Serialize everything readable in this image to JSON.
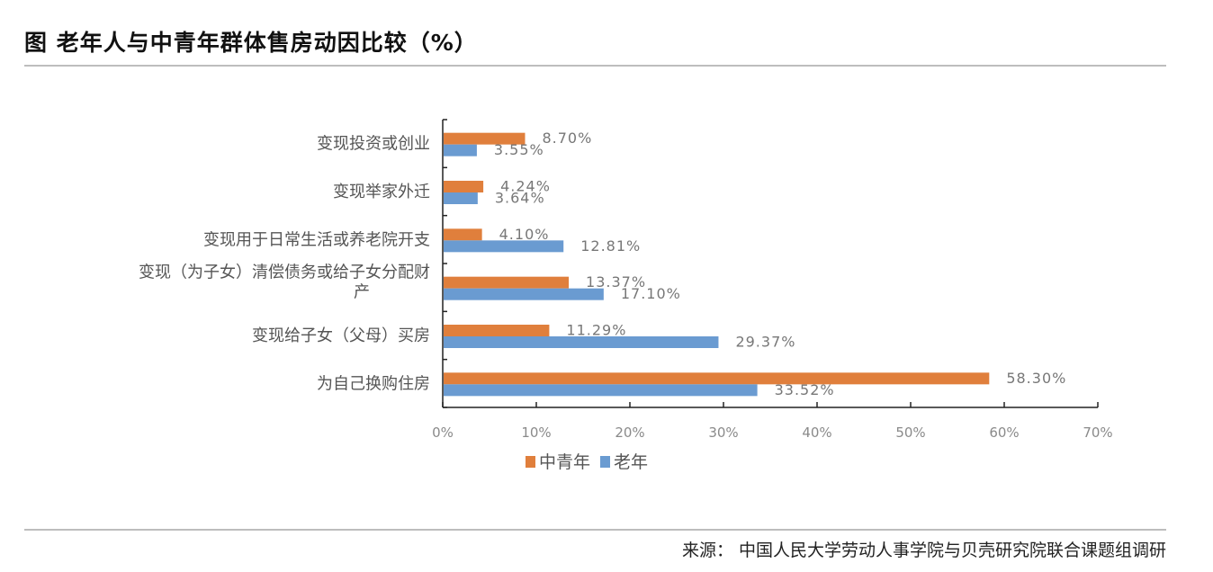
{
  "title": "图  老年人与中青年群体售房动因比较（%）",
  "source": "来源：  中国人民大学劳动人事学院与贝壳研究院联合课题组调研",
  "chart_data": {
    "type": "bar",
    "orientation": "horizontal",
    "categories": [
      [
        "变现投资或创业"
      ],
      [
        "变现举家外迁"
      ],
      [
        "变现用于日常生活或养老院开支"
      ],
      [
        "变现（为子女）清偿债务或给子女分配财",
        "产"
      ],
      [
        "变现给子女（父母）买房"
      ],
      [
        "为自己换购住房"
      ]
    ],
    "series": [
      {
        "name": "中青年",
        "color": "#E07F3C",
        "values": [
          8.7,
          4.24,
          4.1,
          13.37,
          11.29,
          58.3
        ],
        "labels": [
          "8.70%",
          "4.24%",
          "4.10%",
          "13.37%",
          "11.29%",
          "58.30%"
        ]
      },
      {
        "name": "老年",
        "color": "#6A9BD1",
        "values": [
          3.55,
          3.64,
          12.81,
          17.1,
          29.37,
          33.52
        ],
        "labels": [
          "3.55%",
          "3.64%",
          "12.81%",
          "17.10%",
          "29.37%",
          "33.52%"
        ]
      }
    ],
    "xlim": [
      0,
      70
    ],
    "xticks": [
      "0%",
      "10%",
      "20%",
      "30%",
      "40%",
      "50%",
      "60%",
      "70%"
    ],
    "grid": false,
    "legend": "bottom"
  }
}
